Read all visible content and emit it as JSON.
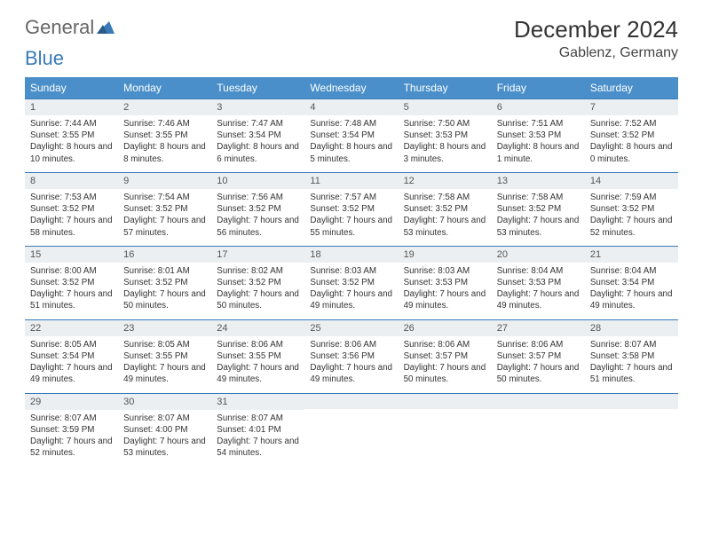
{
  "logo": {
    "text1": "General",
    "text2": "Blue"
  },
  "title": "December 2024",
  "location": "Gablenz, Germany",
  "day_headers": [
    "Sunday",
    "Monday",
    "Tuesday",
    "Wednesday",
    "Thursday",
    "Friday",
    "Saturday"
  ],
  "colors": {
    "header_bg": "#4a8fc9",
    "header_text": "#ffffff",
    "num_bg": "#eceff1",
    "border": "#3a7ab8",
    "logo_blue": "#3a7ab8"
  },
  "days": [
    {
      "n": "1",
      "sunrise": "7:44 AM",
      "sunset": "3:55 PM",
      "daylight": "8 hours and 10 minutes."
    },
    {
      "n": "2",
      "sunrise": "7:46 AM",
      "sunset": "3:55 PM",
      "daylight": "8 hours and 8 minutes."
    },
    {
      "n": "3",
      "sunrise": "7:47 AM",
      "sunset": "3:54 PM",
      "daylight": "8 hours and 6 minutes."
    },
    {
      "n": "4",
      "sunrise": "7:48 AM",
      "sunset": "3:54 PM",
      "daylight": "8 hours and 5 minutes."
    },
    {
      "n": "5",
      "sunrise": "7:50 AM",
      "sunset": "3:53 PM",
      "daylight": "8 hours and 3 minutes."
    },
    {
      "n": "6",
      "sunrise": "7:51 AM",
      "sunset": "3:53 PM",
      "daylight": "8 hours and 1 minute."
    },
    {
      "n": "7",
      "sunrise": "7:52 AM",
      "sunset": "3:52 PM",
      "daylight": "8 hours and 0 minutes."
    },
    {
      "n": "8",
      "sunrise": "7:53 AM",
      "sunset": "3:52 PM",
      "daylight": "7 hours and 58 minutes."
    },
    {
      "n": "9",
      "sunrise": "7:54 AM",
      "sunset": "3:52 PM",
      "daylight": "7 hours and 57 minutes."
    },
    {
      "n": "10",
      "sunrise": "7:56 AM",
      "sunset": "3:52 PM",
      "daylight": "7 hours and 56 minutes."
    },
    {
      "n": "11",
      "sunrise": "7:57 AM",
      "sunset": "3:52 PM",
      "daylight": "7 hours and 55 minutes."
    },
    {
      "n": "12",
      "sunrise": "7:58 AM",
      "sunset": "3:52 PM",
      "daylight": "7 hours and 53 minutes."
    },
    {
      "n": "13",
      "sunrise": "7:58 AM",
      "sunset": "3:52 PM",
      "daylight": "7 hours and 53 minutes."
    },
    {
      "n": "14",
      "sunrise": "7:59 AM",
      "sunset": "3:52 PM",
      "daylight": "7 hours and 52 minutes."
    },
    {
      "n": "15",
      "sunrise": "8:00 AM",
      "sunset": "3:52 PM",
      "daylight": "7 hours and 51 minutes."
    },
    {
      "n": "16",
      "sunrise": "8:01 AM",
      "sunset": "3:52 PM",
      "daylight": "7 hours and 50 minutes."
    },
    {
      "n": "17",
      "sunrise": "8:02 AM",
      "sunset": "3:52 PM",
      "daylight": "7 hours and 50 minutes."
    },
    {
      "n": "18",
      "sunrise": "8:03 AM",
      "sunset": "3:52 PM",
      "daylight": "7 hours and 49 minutes."
    },
    {
      "n": "19",
      "sunrise": "8:03 AM",
      "sunset": "3:53 PM",
      "daylight": "7 hours and 49 minutes."
    },
    {
      "n": "20",
      "sunrise": "8:04 AM",
      "sunset": "3:53 PM",
      "daylight": "7 hours and 49 minutes."
    },
    {
      "n": "21",
      "sunrise": "8:04 AM",
      "sunset": "3:54 PM",
      "daylight": "7 hours and 49 minutes."
    },
    {
      "n": "22",
      "sunrise": "8:05 AM",
      "sunset": "3:54 PM",
      "daylight": "7 hours and 49 minutes."
    },
    {
      "n": "23",
      "sunrise": "8:05 AM",
      "sunset": "3:55 PM",
      "daylight": "7 hours and 49 minutes."
    },
    {
      "n": "24",
      "sunrise": "8:06 AM",
      "sunset": "3:55 PM",
      "daylight": "7 hours and 49 minutes."
    },
    {
      "n": "25",
      "sunrise": "8:06 AM",
      "sunset": "3:56 PM",
      "daylight": "7 hours and 49 minutes."
    },
    {
      "n": "26",
      "sunrise": "8:06 AM",
      "sunset": "3:57 PM",
      "daylight": "7 hours and 50 minutes."
    },
    {
      "n": "27",
      "sunrise": "8:06 AM",
      "sunset": "3:57 PM",
      "daylight": "7 hours and 50 minutes."
    },
    {
      "n": "28",
      "sunrise": "8:07 AM",
      "sunset": "3:58 PM",
      "daylight": "7 hours and 51 minutes."
    },
    {
      "n": "29",
      "sunrise": "8:07 AM",
      "sunset": "3:59 PM",
      "daylight": "7 hours and 52 minutes."
    },
    {
      "n": "30",
      "sunrise": "8:07 AM",
      "sunset": "4:00 PM",
      "daylight": "7 hours and 53 minutes."
    },
    {
      "n": "31",
      "sunrise": "8:07 AM",
      "sunset": "4:01 PM",
      "daylight": "7 hours and 54 minutes."
    }
  ],
  "labels": {
    "sunrise": "Sunrise: ",
    "sunset": "Sunset: ",
    "daylight": "Daylight: "
  }
}
